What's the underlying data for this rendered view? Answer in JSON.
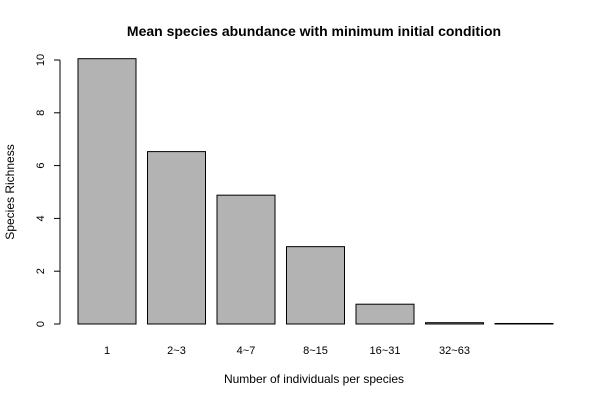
{
  "chart_data": {
    "type": "bar",
    "title": "Mean species abundance with minimum initial condition",
    "xlabel": "Number of individuals per species",
    "ylabel": "Species Richness",
    "categories": [
      "1",
      "2~3",
      "4~7",
      "8~15",
      "16~31",
      "32~63",
      ""
    ],
    "values": [
      10.05,
      6.53,
      4.88,
      2.93,
      0.75,
      0.05,
      0.02
    ],
    "ylim": [
      0,
      10
    ],
    "yticks": [
      0,
      2,
      4,
      6,
      8,
      10
    ],
    "bar_color": "#b3b3b3",
    "bar_stroke": "#000000",
    "grid": false,
    "legend": "none"
  }
}
